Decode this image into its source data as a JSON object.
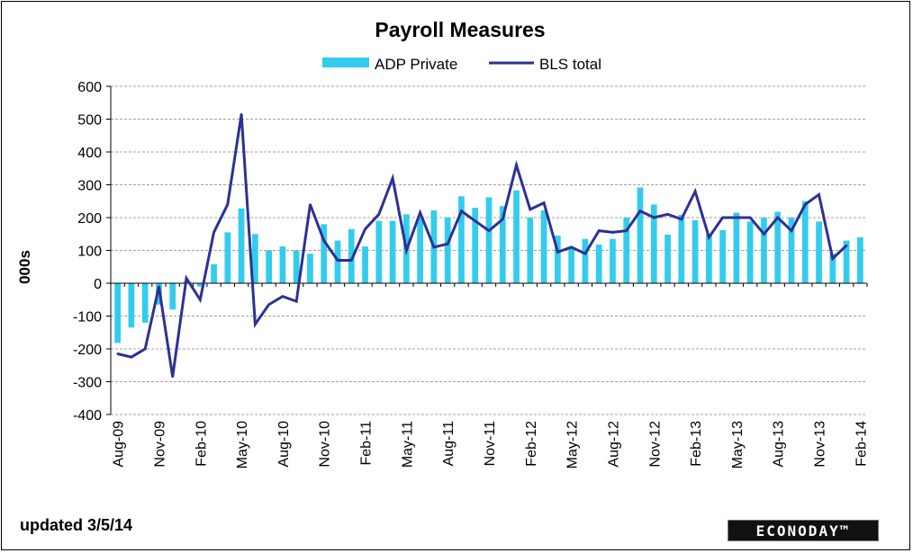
{
  "footer": {
    "updated": "updated  3/5/14",
    "brand": "ECONODAY™"
  },
  "chart_data": {
    "type": "bar",
    "title": "Payroll Measures",
    "xlabel": "",
    "ylabel": "000s",
    "ylim": [
      -400,
      600
    ],
    "yticks": [
      600,
      500,
      400,
      300,
      200,
      100,
      0,
      -100,
      -200,
      -300,
      -400
    ],
    "grid": true,
    "legend": "top-center",
    "colors": {
      "adp": "#33CCEE",
      "bls": "#2E3192",
      "grid": "#A0A0A0"
    },
    "x_tick_labels": [
      "Aug-09",
      "Nov-09",
      "Feb-10",
      "May-10",
      "Aug-10",
      "Nov-10",
      "Feb-11",
      "May-11",
      "Aug-11",
      "Nov-11",
      "Feb-12",
      "May-12",
      "Aug-12",
      "Nov-12",
      "Feb-13",
      "May-13",
      "Aug-13",
      "Nov-13",
      "Feb-14"
    ],
    "months": [
      "Aug-09",
      "Sep-09",
      "Oct-09",
      "Nov-09",
      "Dec-09",
      "Jan-10",
      "Feb-10",
      "Mar-10",
      "Apr-10",
      "May-10",
      "Jun-10",
      "Jul-10",
      "Aug-10",
      "Sep-10",
      "Oct-10",
      "Nov-10",
      "Dec-10",
      "Jan-11",
      "Feb-11",
      "Mar-11",
      "Apr-11",
      "May-11",
      "Jun-11",
      "Jul-11",
      "Aug-11",
      "Sep-11",
      "Oct-11",
      "Nov-11",
      "Dec-11",
      "Jan-12",
      "Feb-12",
      "Mar-12",
      "Apr-12",
      "May-12",
      "Jun-12",
      "Jul-12",
      "Aug-12",
      "Sep-12",
      "Oct-12",
      "Nov-12",
      "Dec-12",
      "Jan-13",
      "Feb-13",
      "Mar-13",
      "Apr-13",
      "May-13",
      "Jun-13",
      "Jul-13",
      "Aug-13",
      "Sep-13",
      "Oct-13",
      "Nov-13",
      "Dec-13",
      "Jan-14",
      "Feb-14"
    ],
    "series": [
      {
        "name": "ADP Private",
        "type": "bar",
        "values": [
          -182,
          -135,
          -120,
          -65,
          -80,
          5,
          -10,
          58,
          155,
          228,
          150,
          100,
          112,
          100,
          90,
          180,
          130,
          165,
          112,
          190,
          190,
          210,
          200,
          222,
          200,
          265,
          230,
          262,
          235,
          283,
          200,
          222,
          145,
          110,
          135,
          118,
          135,
          200,
          292,
          240,
          148,
          208,
          192,
          150,
          162,
          215,
          188,
          200,
          218,
          200,
          250,
          188,
          90,
          130,
          140
        ]
      },
      {
        "name": "BLS total",
        "type": "line",
        "values": [
          -215,
          -225,
          -200,
          -10,
          -285,
          15,
          -50,
          155,
          240,
          515,
          -125,
          -65,
          -40,
          -55,
          240,
          130,
          70,
          70,
          165,
          210,
          320,
          100,
          215,
          110,
          120,
          220,
          190,
          160,
          195,
          360,
          225,
          245,
          95,
          110,
          90,
          160,
          155,
          160,
          220,
          200,
          210,
          195,
          280,
          140,
          200,
          200,
          200,
          150,
          200,
          160,
          240,
          270,
          75,
          115,
          null
        ]
      }
    ]
  }
}
